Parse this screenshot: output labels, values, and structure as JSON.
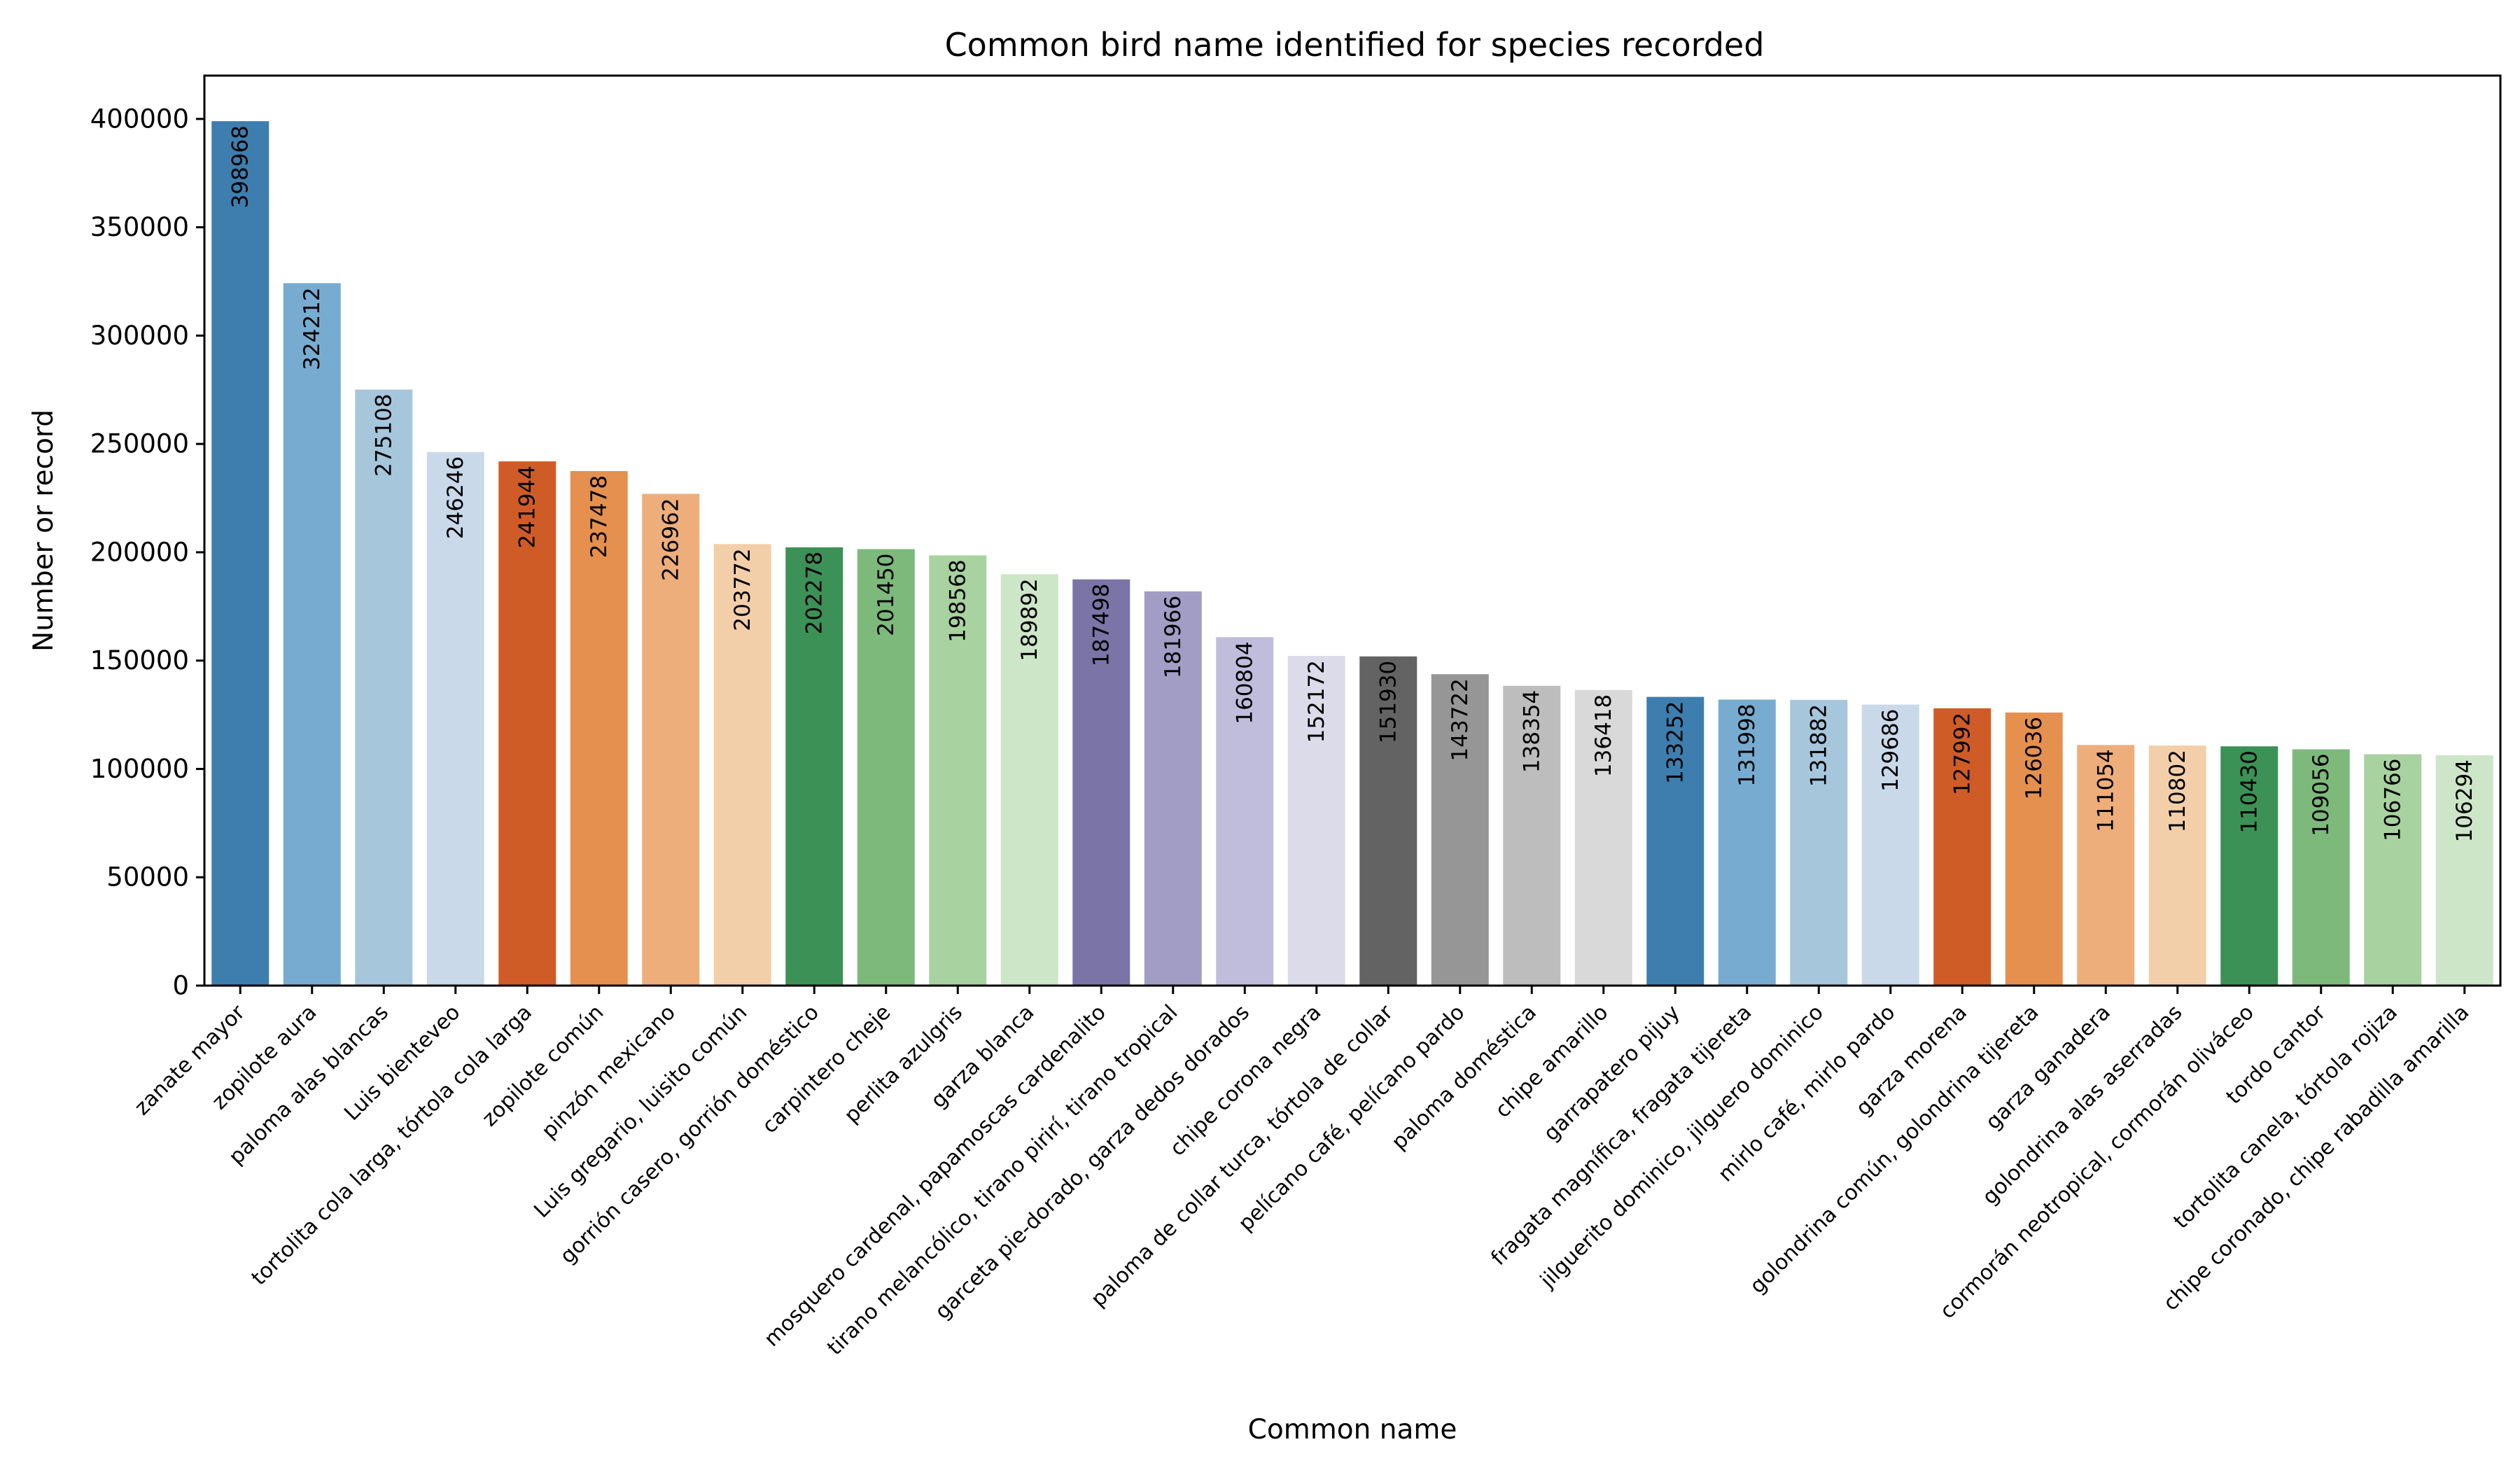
{
  "chart_data": {
    "type": "bar",
    "title": "Common bird name identified for species recorded",
    "xlabel": "Common name",
    "ylabel": "Number or record",
    "ylim": [
      0,
      420000
    ],
    "yticks": [
      0,
      50000,
      100000,
      150000,
      200000,
      250000,
      300000,
      350000,
      400000
    ],
    "grid": false,
    "categories": [
      "zanate mayor",
      "zopilote aura",
      "paloma alas blancas",
      "Luis bienteveo",
      "tortolita cola larga, tórtola cola larga",
      "zopilote común",
      "pinzón mexicano",
      "Luis gregario, luisito común",
      "gorrión casero, gorrión doméstico",
      "carpintero cheje",
      "perlita azulgris",
      "garza blanca",
      "mosquero cardenal, papamoscas cardenalito",
      "tirano melancólico, tirano pirirí, tirano tropical",
      "garceta pie-dorado, garza dedos dorados",
      "chipe corona negra",
      "paloma de collar turca, tórtola de collar",
      "pelícano café, pelícano pardo",
      "paloma doméstica",
      "chipe amarillo",
      "garrapatero pijuy",
      "fragata magnífica, fragata tijereta",
      "jilguerito dominico, jilguero dominico",
      "mirlo café, mirlo pardo",
      "garza morena",
      "golondrina común, golondrina tijereta",
      "garza ganadera",
      "golondrina alas aserradas",
      "cormorán neotropical, cormorán oliváceo",
      "tordo cantor",
      "tortolita canela, tórtola rojiza",
      "chipe coronado, chipe rabadilla amarilla"
    ],
    "values": [
      398968,
      324212,
      275108,
      246246,
      241944,
      237478,
      226962,
      203772,
      202278,
      201450,
      198568,
      189892,
      187498,
      181966,
      160804,
      152172,
      151930,
      143722,
      138354,
      136418,
      133252,
      131998,
      131882,
      129686,
      127992,
      126036,
      111054,
      110802,
      110430,
      109056,
      106766,
      106294
    ],
    "data_labels": [
      "398968",
      "324212",
      "275108",
      "246246",
      "241944",
      "237478",
      "226962",
      "203772",
      "202278",
      "201450",
      "198568",
      "189892",
      "187498",
      "181966",
      "160804",
      "152172",
      "151930",
      "143722",
      "138354",
      "136418",
      "133252",
      "131998",
      "131882",
      "129686",
      "127992",
      "126036",
      "111054",
      "110802",
      "110430",
      "109056",
      "106766",
      "106294"
    ],
    "colors": [
      "#3d7eae",
      "#77acd0",
      "#a6c6dc",
      "#c9d9ea",
      "#cf5c27",
      "#e5904f",
      "#eeae7b",
      "#f3cfa9",
      "#3c9156",
      "#7cb97b",
      "#a8d2a0",
      "#cde6c7",
      "#7b74a7",
      "#a29dc4",
      "#bfbddb",
      "#dcdbe9",
      "#636363",
      "#969696",
      "#bdbdbd",
      "#d9d9d9",
      "#3d7eae",
      "#77acd0",
      "#a6c6dc",
      "#c9d9ea",
      "#cf5c27",
      "#e5904f",
      "#eeae7b",
      "#f3cfa9",
      "#3c9156",
      "#7cb97b",
      "#a8d2a0",
      "#cde6c7"
    ]
  }
}
